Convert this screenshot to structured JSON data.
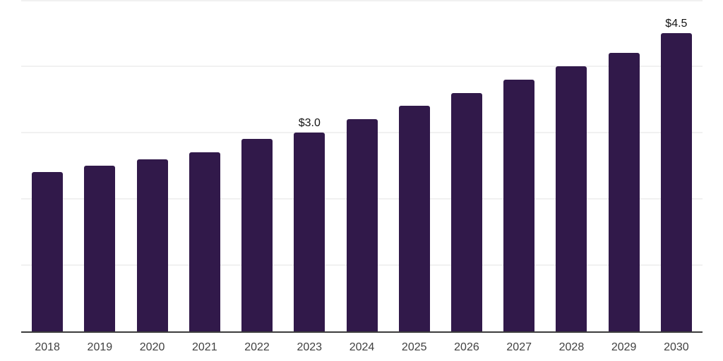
{
  "chart_data": {
    "type": "bar",
    "title": "",
    "xlabel": "",
    "ylabel": "",
    "categories": [
      "2018",
      "2019",
      "2020",
      "2021",
      "2022",
      "2023",
      "2024",
      "2025",
      "2026",
      "2027",
      "2028",
      "2029",
      "2030"
    ],
    "values": [
      2.4,
      2.5,
      2.6,
      2.7,
      2.9,
      3.0,
      3.2,
      3.4,
      3.6,
      3.8,
      4.0,
      4.2,
      4.5
    ],
    "data_labels": [
      {
        "index": 5,
        "text": "$3.0"
      },
      {
        "index": 12,
        "text": "$4.5"
      }
    ],
    "ylim": [
      0,
      5
    ],
    "grid": {
      "visible": true,
      "interval": 1.0,
      "values": [
        1,
        2,
        3,
        4,
        5
      ]
    },
    "y_tick_labels_visible": false,
    "legend_position": "none",
    "colors": {
      "bar": "#31194A",
      "gridline": "#F1F1F1",
      "axis_line": "#3C3C3C",
      "tick_label": "#404040",
      "data_label": "#141414",
      "background": "#FFFFFF"
    }
  }
}
